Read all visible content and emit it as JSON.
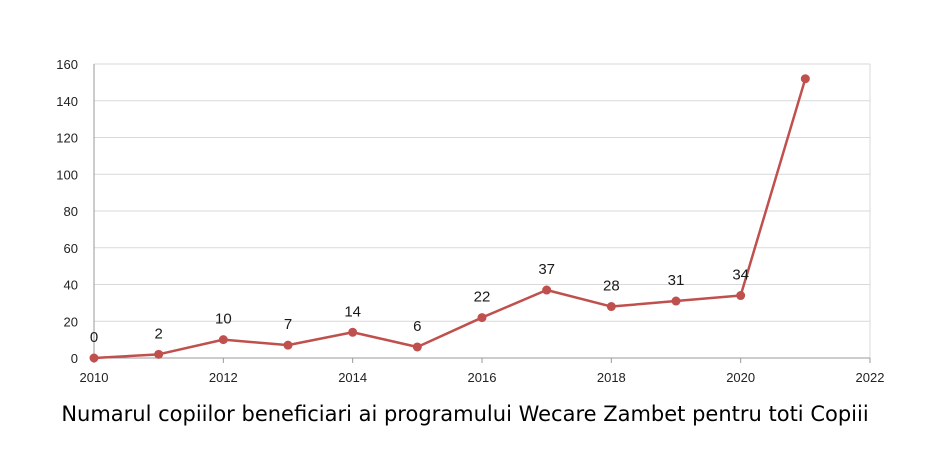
{
  "chart_data": {
    "type": "line",
    "title": "Numarul copiilor beneficiari ai programului Wecare Zambet pentru toti Copiii",
    "xlabel": "",
    "ylabel": "",
    "xlim": [
      2010,
      2022
    ],
    "ylim": [
      0,
      160
    ],
    "x_ticks": [
      2010,
      2012,
      2014,
      2016,
      2018,
      2020,
      2022
    ],
    "y_ticks": [
      0,
      20,
      40,
      60,
      80,
      100,
      120,
      140,
      160
    ],
    "grid": true,
    "legend": "none",
    "series": [
      {
        "color": "#c0504d",
        "x": [
          2010,
          2011,
          2012,
          2013,
          2014,
          2015,
          2016,
          2017,
          2018,
          2019,
          2020,
          2021
        ],
        "values": [
          0,
          2,
          10,
          7,
          14,
          6,
          22,
          37,
          28,
          31,
          34,
          152
        ],
        "data_labels": [
          "0",
          "2",
          "10",
          "7",
          "14",
          "6",
          "22",
          "37",
          "28",
          "31",
          "34",
          ""
        ]
      }
    ]
  }
}
